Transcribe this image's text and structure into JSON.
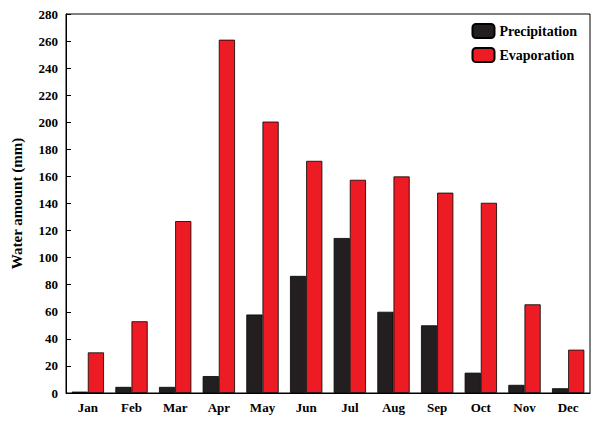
{
  "chart_data": {
    "type": "bar",
    "y_label": "Water amount (mm)",
    "categories": [
      "Jan",
      "Feb",
      "Mar",
      "Apr",
      "May",
      "Jun",
      "Jul",
      "Aug",
      "Sep",
      "Oct",
      "Nov",
      "Dec"
    ],
    "series": [
      {
        "name": "Precipitation",
        "color": "#231f20",
        "values": [
          1,
          4.5,
          4.5,
          12.5,
          58,
          86.5,
          114.5,
          60,
          50,
          15,
          6,
          3.5
        ]
      },
      {
        "name": "Evaporation",
        "color": "#ed1c24",
        "values": [
          30,
          53,
          127,
          261,
          200.5,
          171.5,
          157.5,
          160,
          148,
          140.5,
          65.5,
          32
        ]
      }
    ],
    "ylim": [
      0,
      280
    ],
    "yticks": [
      0,
      20,
      40,
      60,
      80,
      100,
      120,
      140,
      160,
      180,
      200,
      220,
      240,
      260,
      280
    ],
    "grid": false,
    "legend": "upper right"
  }
}
